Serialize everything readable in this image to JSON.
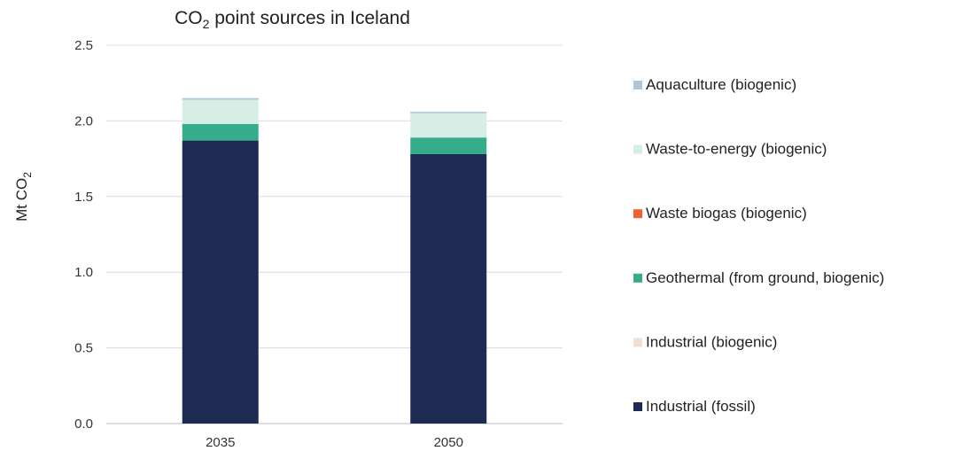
{
  "chart_data": {
    "type": "bar",
    "stacked": true,
    "title": {
      "main": "CO",
      "sub": "2",
      "rest": " point sources in Iceland"
    },
    "ylabel": {
      "main": "Mt CO",
      "sub": "2"
    },
    "xlabel": "",
    "categories": [
      "2035",
      "2050"
    ],
    "ylim": [
      0,
      2.5
    ],
    "yticks": [
      "0.0",
      "0.5",
      "1.0",
      "1.5",
      "2.0",
      "2.5"
    ],
    "ytick_values": [
      0,
      0.5,
      1.0,
      1.5,
      2.0,
      2.5
    ],
    "grid": true,
    "legend_position": "right",
    "series": [
      {
        "name": "Industrial (fossil)",
        "color": "#1f2a52",
        "values": [
          1.87,
          1.78
        ]
      },
      {
        "name": "Industrial (biogenic)",
        "color": "#f2dfd0",
        "values": [
          0.0,
          0.0
        ]
      },
      {
        "name": "Geothermal (from ground, biogenic)",
        "color": "#35ad8b",
        "values": [
          0.11,
          0.11
        ]
      },
      {
        "name": "Waste biogas (biogenic)",
        "color": "#f06030",
        "values": [
          0.0,
          0.0
        ]
      },
      {
        "name": "Waste-to-energy (biogenic)",
        "color": "#d6eee5",
        "values": [
          0.16,
          0.16
        ]
      },
      {
        "name": "Aquaculture (biogenic)",
        "color": "#a9c8e0",
        "values": [
          0.01,
          0.01
        ]
      }
    ],
    "legend_order": [
      "Aquaculture (biogenic)",
      "Waste-to-energy (biogenic)",
      "Waste biogas (biogenic)",
      "Geothermal (from ground, biogenic)",
      "Industrial (biogenic)",
      "Industrial (fossil)"
    ]
  }
}
